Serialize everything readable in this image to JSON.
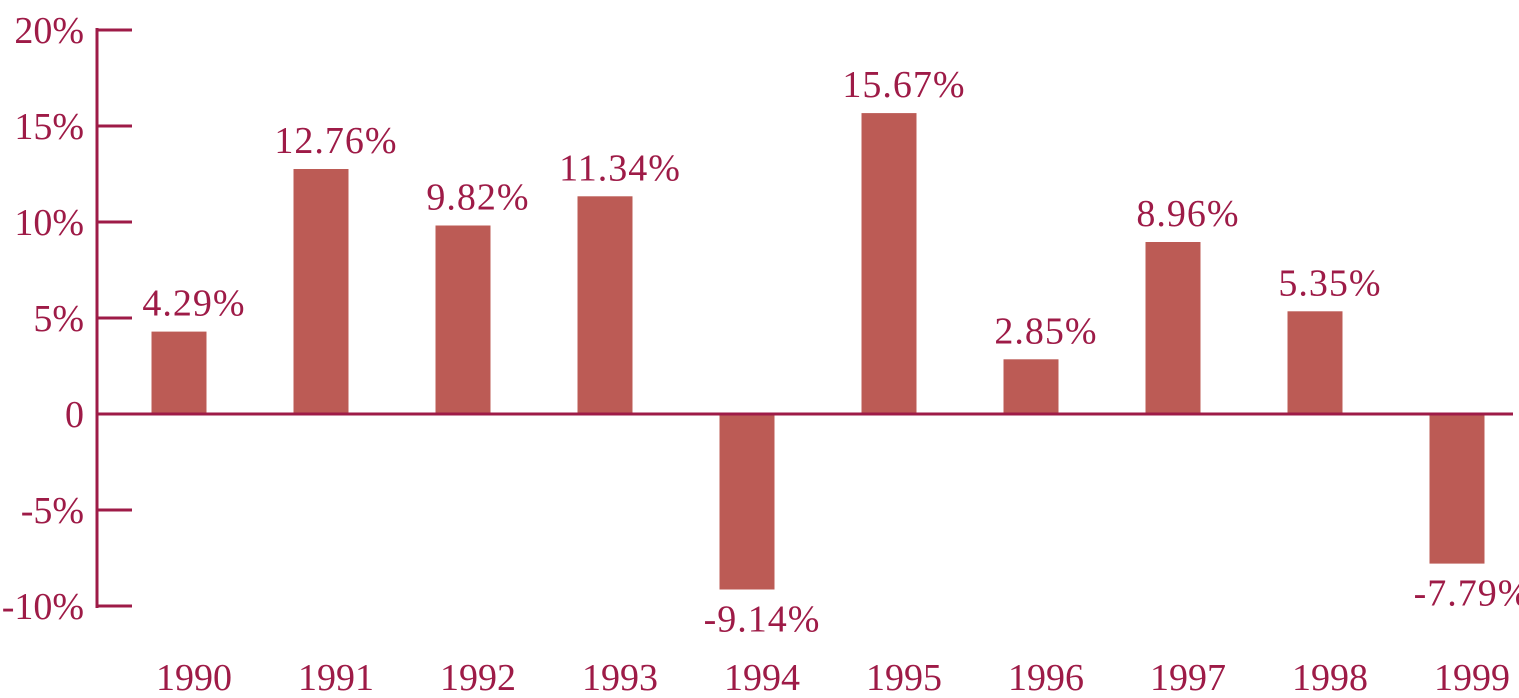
{
  "chart_data": {
    "type": "bar",
    "categories": [
      "1990",
      "1991",
      "1992",
      "1993",
      "1994",
      "1995",
      "1996",
      "1997",
      "1998",
      "1999"
    ],
    "values": [
      4.29,
      12.76,
      9.82,
      11.34,
      -9.14,
      15.67,
      2.85,
      8.96,
      5.35,
      -7.79
    ],
    "value_labels": [
      "4.29%",
      "12.76%",
      "9.82%",
      "11.34%",
      "-9.14%",
      "15.67%",
      "2.85%",
      "8.96%",
      "5.35%",
      "-7.79%"
    ],
    "ylim": [
      -10,
      20
    ],
    "yticks": [
      20,
      15,
      10,
      5,
      0,
      -5,
      -10
    ],
    "ytick_labels": [
      "20%",
      "15%",
      "10%",
      "5%",
      "0",
      "-5%",
      "-10%"
    ],
    "title": "",
    "xlabel": "",
    "ylabel": "",
    "grid": false,
    "legend": "none",
    "colors": {
      "bar": "#bc5b55",
      "axis": "#9e1b47",
      "text": "#9e1b47"
    }
  }
}
